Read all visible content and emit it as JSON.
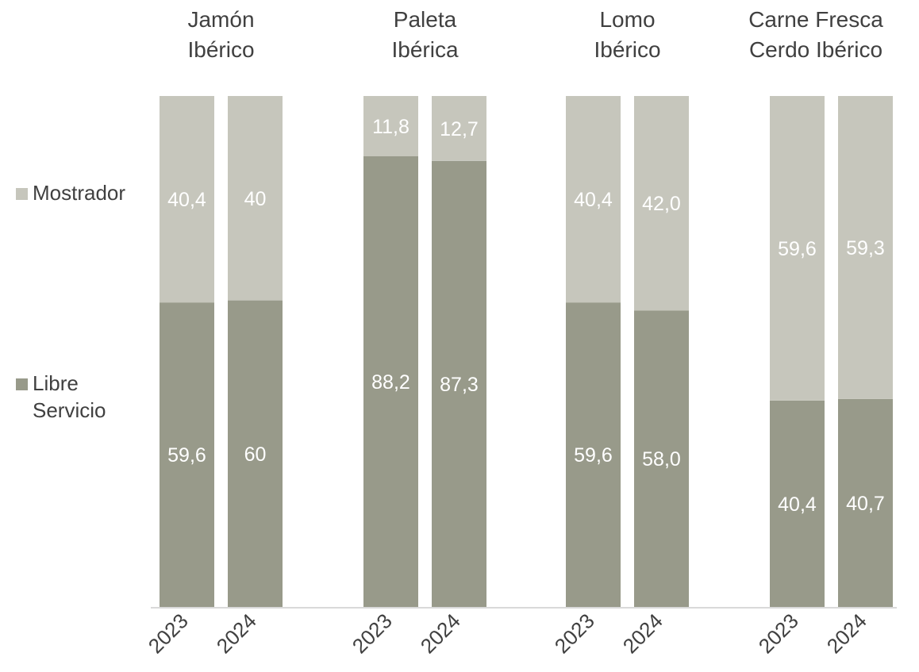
{
  "chart_data": {
    "type": "bar",
    "stacked": true,
    "normalized_percent": true,
    "groups": [
      {
        "title": "Jamón\nIbérico",
        "years": [
          "2023",
          "2024"
        ],
        "libre_servicio": [
          59.6,
          60
        ],
        "mostrador": [
          40.4,
          40
        ],
        "libre_labels": [
          "59,6",
          "60"
        ],
        "mostrador_labels": [
          "40,4",
          "40"
        ]
      },
      {
        "title": "Paleta\nIbérica",
        "years": [
          "2023",
          "2024"
        ],
        "libre_servicio": [
          88.2,
          87.3
        ],
        "mostrador": [
          11.8,
          12.7
        ],
        "libre_labels": [
          "88,2",
          "87,3"
        ],
        "mostrador_labels": [
          "11,8",
          "12,7"
        ]
      },
      {
        "title": "Lomo\nIbérico",
        "years": [
          "2023",
          "2024"
        ],
        "libre_servicio": [
          59.6,
          58.0
        ],
        "mostrador": [
          40.4,
          42.0
        ],
        "libre_labels": [
          "59,6",
          "58,0"
        ],
        "mostrador_labels": [
          "40,4",
          "42,0"
        ]
      },
      {
        "title": "Carne Fresca\nCerdo Ibérico",
        "years": [
          "2023",
          "2024"
        ],
        "libre_servicio": [
          40.4,
          40.7
        ],
        "mostrador": [
          59.6,
          59.3
        ],
        "libre_labels": [
          "40,4",
          "40,7"
        ],
        "mostrador_labels": [
          "59,6",
          "59,3"
        ]
      }
    ],
    "legend": {
      "placement": "left",
      "items": [
        {
          "name": "Mostrador",
          "color": "#c6c6bc"
        },
        {
          "name": "Libre\nServicio",
          "color": "#989a8a"
        }
      ]
    },
    "colors": {
      "mostrador": "#c6c6bc",
      "libre_servicio": "#989a8a",
      "axis": "#d9d9d9",
      "label_inside": "#ffffff",
      "text": "#404040"
    },
    "ylim": [
      0,
      100
    ]
  }
}
